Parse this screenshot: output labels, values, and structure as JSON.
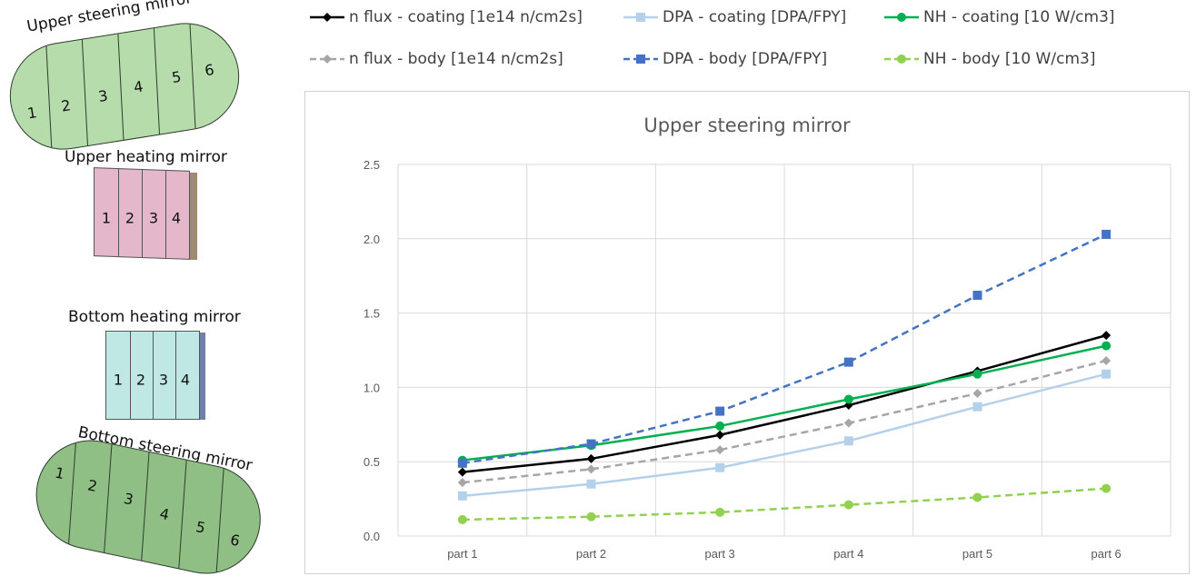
{
  "diagrams": {
    "upper_steering": {
      "title": "Upper steering mirror",
      "parts": [
        "1",
        "2",
        "3",
        "4",
        "5",
        "6"
      ],
      "color": "#b5dcaa"
    },
    "upper_heating": {
      "title": "Upper heating mirror",
      "parts": [
        "1",
        "2",
        "3",
        "4"
      ],
      "color": "#e4b7ca"
    },
    "bottom_heating": {
      "title": "Bottom heating mirror",
      "parts": [
        "1",
        "2",
        "3",
        "4"
      ],
      "color": "#bfe8e4"
    },
    "bottom_steering": {
      "title": "Bottom steering mirror",
      "parts": [
        "1",
        "2",
        "3",
        "4",
        "5",
        "6"
      ],
      "color": "#8fbf85"
    }
  },
  "legend": [
    {
      "label": "n flux - coating [1e14 n/cm2s]",
      "color": "#000000",
      "dash": false,
      "marker": "diamond"
    },
    {
      "label": "DPA - coating [DPA/FPY]",
      "color": "#b4d0ea",
      "dash": false,
      "marker": "square"
    },
    {
      "label": "NH - coating [10 W/cm3]",
      "color": "#00b050",
      "dash": false,
      "marker": "circle"
    },
    {
      "label": "n flux - body [1e14 n/cm2s]",
      "color": "#a6a6a6",
      "dash": true,
      "marker": "diamond"
    },
    {
      "label": "DPA - body  [DPA/FPY]",
      "color": "#4472c4",
      "dash": true,
      "marker": "square"
    },
    {
      "label": "NH - body [10 W/cm3]",
      "color": "#92d050",
      "dash": true,
      "marker": "circle"
    }
  ],
  "chart_data": {
    "type": "line",
    "title": "Upper steering mirror",
    "categories": [
      "part 1",
      "part 2",
      "part 3",
      "part 4",
      "part 5",
      "part 6"
    ],
    "ylim": [
      0,
      2.5
    ],
    "yticks": [
      "0.0",
      "0.5",
      "1.0",
      "1.5",
      "2.0",
      "2.5"
    ],
    "grid": true,
    "legend_position": "top",
    "series": [
      {
        "name": "n flux - coating [1e14 n/cm2s]",
        "values": [
          0.43,
          0.52,
          0.68,
          0.88,
          1.11,
          1.35
        ],
        "color": "#000000",
        "dash": false,
        "marker": "diamond"
      },
      {
        "name": "DPA - coating [DPA/FPY]",
        "values": [
          0.27,
          0.35,
          0.46,
          0.64,
          0.87,
          1.09
        ],
        "color": "#b4d0ea",
        "dash": false,
        "marker": "square"
      },
      {
        "name": "NH - coating [10 W/cm3]",
        "values": [
          0.51,
          0.61,
          0.74,
          0.92,
          1.09,
          1.28
        ],
        "color": "#00b050",
        "dash": false,
        "marker": "circle"
      },
      {
        "name": "n flux - body [1e14 n/cm2s]",
        "values": [
          0.36,
          0.45,
          0.58,
          0.76,
          0.96,
          1.18
        ],
        "color": "#a6a6a6",
        "dash": true,
        "marker": "diamond"
      },
      {
        "name": "DPA - body  [DPA/FPY]",
        "values": [
          0.49,
          0.62,
          0.84,
          1.17,
          1.62,
          2.03
        ],
        "color": "#4472c4",
        "dash": true,
        "marker": "square"
      },
      {
        "name": "NH - body [10 W/cm3]",
        "values": [
          0.11,
          0.13,
          0.16,
          0.21,
          0.26,
          0.32
        ],
        "color": "#92d050",
        "dash": true,
        "marker": "circle"
      }
    ]
  }
}
